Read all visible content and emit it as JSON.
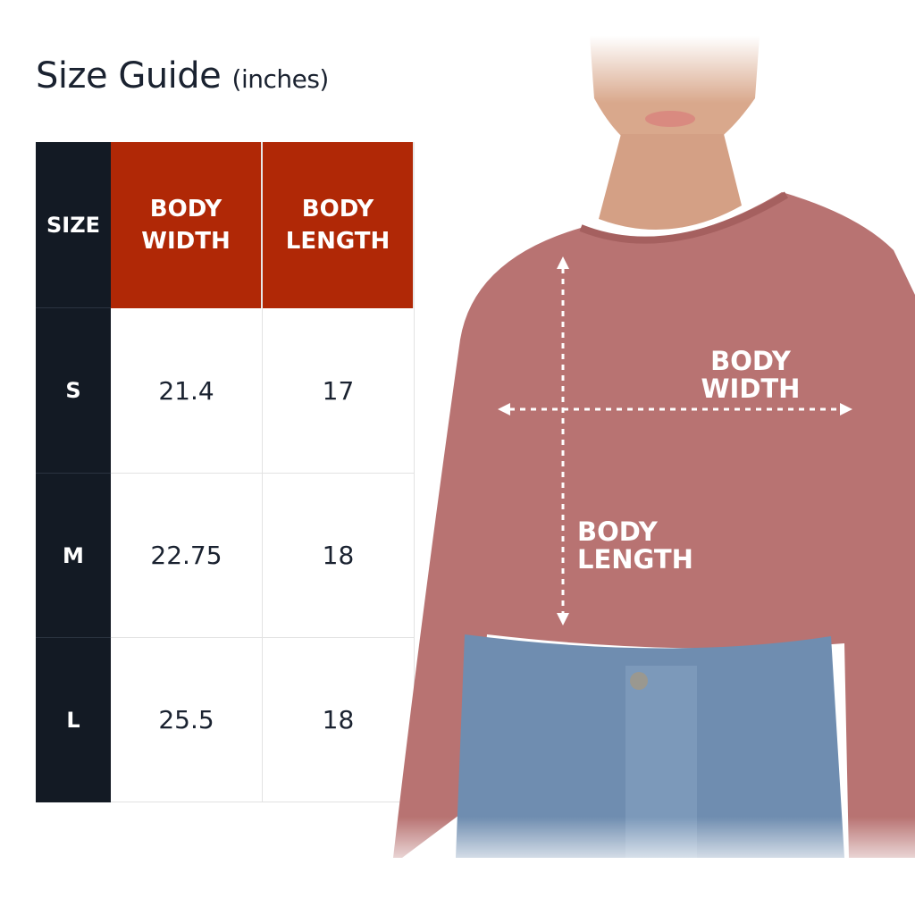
{
  "title": {
    "main": "Size Guide",
    "unit": "(inches)"
  },
  "colors": {
    "header_dark": "#131a24",
    "header_accent": "#b02806",
    "shirt": "#b87372",
    "text": "#1a2230"
  },
  "table": {
    "headers": {
      "size": "SIZE",
      "body_width": [
        "BODY",
        "WIDTH"
      ],
      "body_length": [
        "BODY",
        "LENGTH"
      ]
    },
    "rows": [
      {
        "size": "S",
        "body_width": "21.4",
        "body_length": "17"
      },
      {
        "size": "M",
        "body_width": "22.75",
        "body_length": "18"
      },
      {
        "size": "L",
        "body_width": "25.5",
        "body_length": "18"
      }
    ]
  },
  "photo": {
    "width_label": [
      "BODY",
      "WIDTH"
    ],
    "length_label": [
      "BODY",
      "LENGTH"
    ]
  }
}
